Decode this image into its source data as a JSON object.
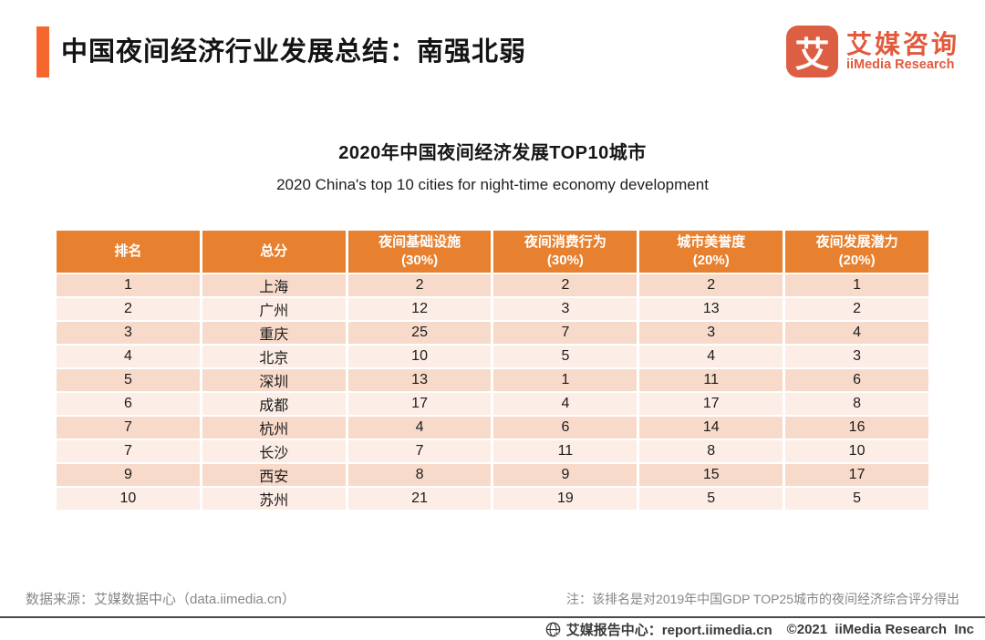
{
  "colors": {
    "accent": "#F6672F",
    "table-header": "#E8812F",
    "row-odd": "#F8DACB",
    "row-even": "#FCEDE6",
    "logo": "#DC5F43",
    "logo-text": "#E25A3C",
    "note-gray": "#878787",
    "footer-ink": "#3A3A3A"
  },
  "header": {
    "title": "中国夜间经济行业发展总结：南强北弱",
    "logo": {
      "icon_char": "艾",
      "name_cn": "艾媒咨询",
      "name_en": "iiMedia Research"
    }
  },
  "chart_data": {
    "type": "table",
    "title": "2020年中国夜间经济发展TOP10城市",
    "subtitle": "2020 China's top 10 cities for night-time economy development",
    "columns": [
      {
        "label": "排名",
        "sub": ""
      },
      {
        "label": "总分",
        "sub": ""
      },
      {
        "label": "夜间基础设施",
        "sub": "(30%)"
      },
      {
        "label": "夜间消费行为",
        "sub": "(30%)"
      },
      {
        "label": "城市美誉度",
        "sub": "(20%)"
      },
      {
        "label": "夜间发展潜力",
        "sub": "(20%)"
      }
    ],
    "rows": [
      [
        "1",
        "上海",
        "2",
        "2",
        "2",
        "1"
      ],
      [
        "2",
        "广州",
        "12",
        "3",
        "13",
        "2"
      ],
      [
        "3",
        "重庆",
        "25",
        "7",
        "3",
        "4"
      ],
      [
        "4",
        "北京",
        "10",
        "5",
        "4",
        "3"
      ],
      [
        "5",
        "深圳",
        "13",
        "1",
        "11",
        "6"
      ],
      [
        "6",
        "成都",
        "17",
        "4",
        "17",
        "8"
      ],
      [
        "7",
        "杭州",
        "4",
        "6",
        "14",
        "16"
      ],
      [
        "7",
        "长沙",
        "7",
        "11",
        "8",
        "10"
      ],
      [
        "9",
        "西安",
        "8",
        "9",
        "15",
        "17"
      ],
      [
        "10",
        "苏州",
        "21",
        "19",
        "5",
        "5"
      ]
    ]
  },
  "footer": {
    "source": "数据来源：艾媒数据中心（data.iimedia.cn）",
    "note": "注：该排名是对2019年中国GDP TOP25城市的夜间经济综合评分得出",
    "report_center": "艾媒报告中心：report.iimedia.cn",
    "copyright": "©2021  iiMedia Research  Inc"
  }
}
